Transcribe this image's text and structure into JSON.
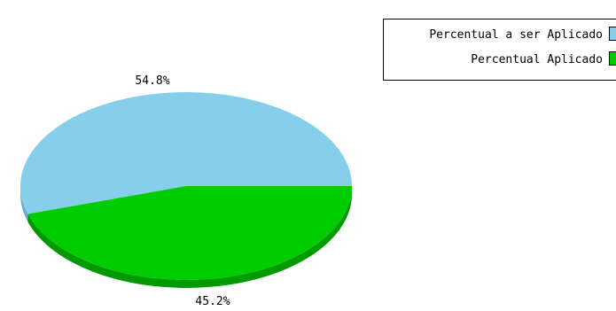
{
  "chart_data": {
    "type": "pie",
    "title": "",
    "legend_position": "top-right",
    "slices": [
      {
        "label": "Percentual a ser Aplicado",
        "value": 54.8,
        "value_label": "54.8%",
        "color": "#87ceeb",
        "side_color": "#6aaecc"
      },
      {
        "label": "Percentual Aplicado",
        "value": 45.2,
        "value_label": "45.2%",
        "color": "#00cc00",
        "side_color": "#009900"
      }
    ]
  }
}
